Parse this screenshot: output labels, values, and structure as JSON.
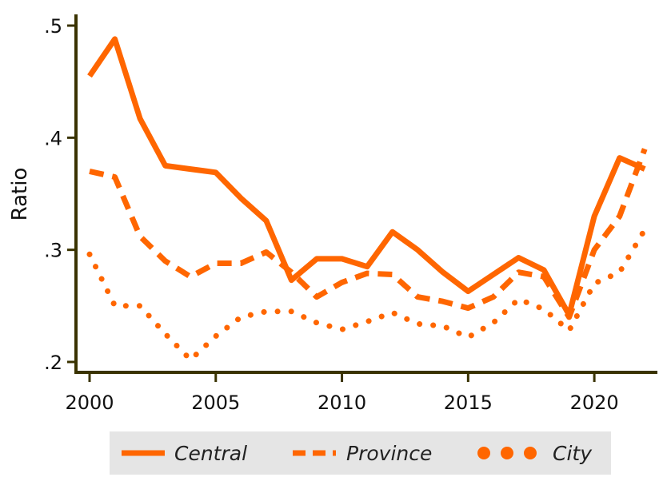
{
  "chart_data": {
    "type": "line",
    "title": "",
    "xlabel": "",
    "ylabel": "Ratio",
    "xlim": [
      2000,
      2022.5
    ],
    "ylim": [
      0.195,
      0.51
    ],
    "x_ticks": [
      2000,
      2005,
      2010,
      2015,
      2020
    ],
    "x_tick_labels": [
      "2000",
      "2005",
      "2010",
      "2015",
      "2020"
    ],
    "y_ticks": [
      0.2,
      0.3,
      0.4,
      0.5
    ],
    "y_tick_labels": [
      ".2",
      ".3",
      ".4",
      ".5"
    ],
    "x": [
      2000,
      2001,
      2002,
      2003,
      2004,
      2005,
      2006,
      2007,
      2008,
      2009,
      2010,
      2011,
      2012,
      2013,
      2014,
      2015,
      2016,
      2017,
      2018,
      2019,
      2020,
      2021,
      2022
    ],
    "series": [
      {
        "name": "Central",
        "style": "solid",
        "color": "#ff6600",
        "values": [
          0.455,
          0.488,
          0.417,
          0.375,
          0.372,
          0.369,
          0.346,
          0.326,
          0.273,
          0.292,
          0.292,
          0.285,
          0.316,
          0.3,
          0.28,
          0.263,
          0.278,
          0.293,
          0.282,
          0.242,
          0.33,
          0.382,
          0.372
        ]
      },
      {
        "name": "Province",
        "style": "dashed",
        "color": "#ff6600",
        "values": [
          0.37,
          0.365,
          0.312,
          0.29,
          0.276,
          0.288,
          0.288,
          0.298,
          0.28,
          0.258,
          0.271,
          0.279,
          0.278,
          0.258,
          0.254,
          0.248,
          0.258,
          0.28,
          0.276,
          0.24,
          0.3,
          0.33,
          0.39
        ]
      },
      {
        "name": "City",
        "style": "dotted",
        "color": "#ff6600",
        "values": [
          0.296,
          0.25,
          0.25,
          0.225,
          0.202,
          0.223,
          0.24,
          0.245,
          0.245,
          0.235,
          0.229,
          0.236,
          0.244,
          0.234,
          0.232,
          0.222,
          0.235,
          0.256,
          0.247,
          0.228,
          0.27,
          0.28,
          0.318
        ]
      }
    ],
    "grid": false,
    "legend_position": "bottom",
    "axis_color": "#3a3300",
    "legend_background": "#e5e5e5"
  }
}
